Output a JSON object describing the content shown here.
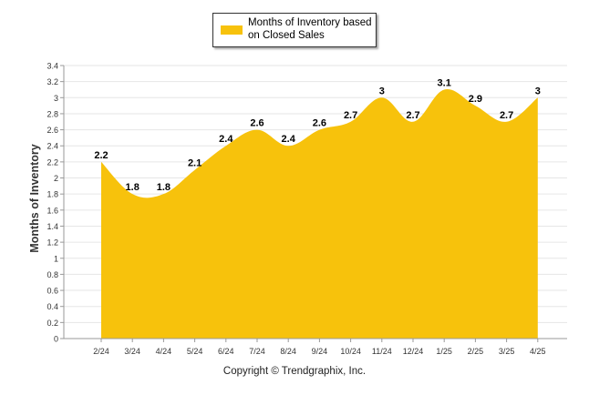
{
  "chart_data": {
    "type": "area",
    "categories": [
      "2/24",
      "3/24",
      "4/24",
      "5/24",
      "6/24",
      "7/24",
      "8/24",
      "9/24",
      "10/24",
      "11/24",
      "12/24",
      "1/25",
      "2/25",
      "3/25",
      "4/25"
    ],
    "series": [
      {
        "name": "Months of Inventory based on Closed Sales",
        "values": [
          2.2,
          1.8,
          1.8,
          2.1,
          2.4,
          2.6,
          2.4,
          2.6,
          2.7,
          3,
          2.7,
          3.1,
          2.9,
          2.7,
          3
        ],
        "color": "#f7c20c"
      }
    ],
    "ylabel": "Months of Inventory",
    "xlabel": "",
    "ylim": [
      0,
      3.4
    ],
    "yticks": [
      "0",
      "0.2",
      "0.4",
      "0.6",
      "0.8",
      "1",
      "1.2",
      "1.4",
      "1.6",
      "1.8",
      "2",
      "2.2",
      "2.4",
      "2.6",
      "2.8",
      "3",
      "3.2",
      "3.4"
    ],
    "grid": true,
    "legend": "top-center",
    "data_labels": [
      "2.2",
      "1.8",
      "1.8",
      "2.1",
      "2.4",
      "2.6",
      "2.4",
      "2.6",
      "2.7",
      "3",
      "2.7",
      "3.1",
      "2.9",
      "2.7",
      "3"
    ]
  },
  "footer": {
    "copyright": "Copyright © Trendgraphix, Inc."
  }
}
